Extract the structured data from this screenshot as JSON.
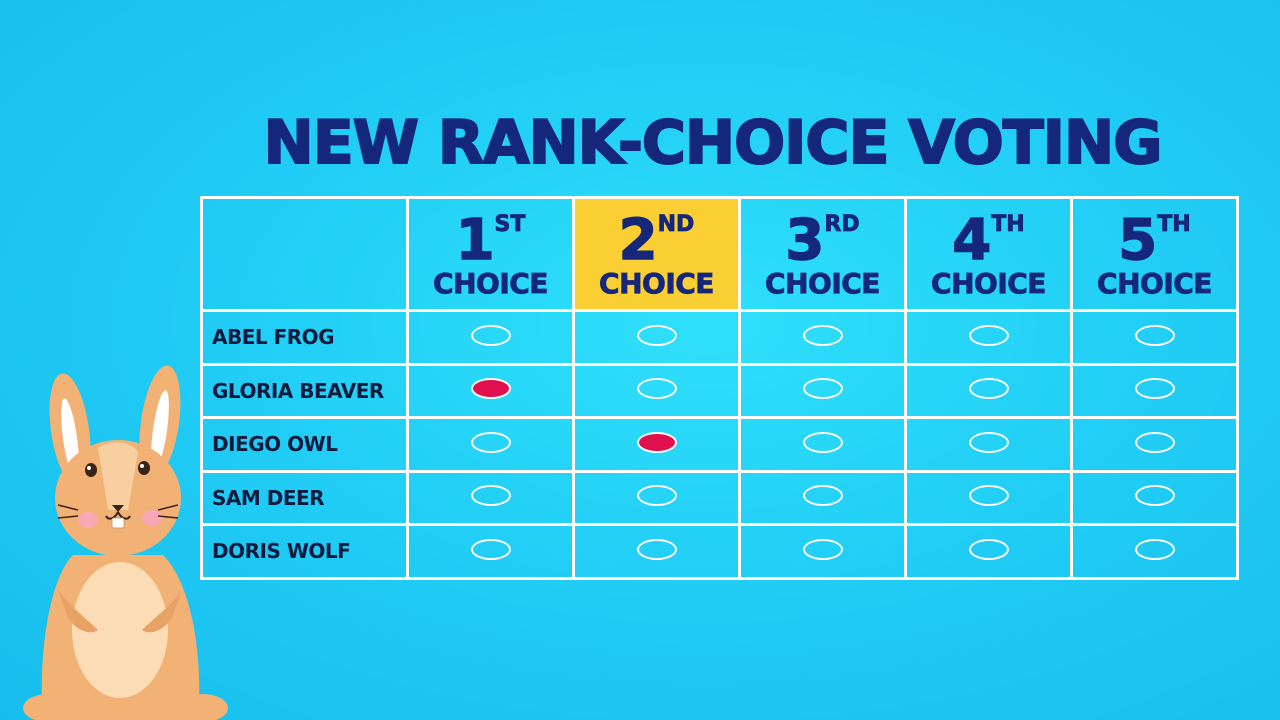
{
  "title": "NEW RANK-CHOICE VOTING",
  "choices": [
    {
      "num": "1",
      "suffix": "ST",
      "label": "CHOICE"
    },
    {
      "num": "2",
      "suffix": "ND",
      "label": "CHOICE"
    },
    {
      "num": "3",
      "suffix": "RD",
      "label": "CHOICE"
    },
    {
      "num": "4",
      "suffix": "TH",
      "label": "CHOICE"
    },
    {
      "num": "5",
      "suffix": "TH",
      "label": "CHOICE"
    }
  ],
  "highlighted_choice": 2,
  "candidates": [
    {
      "name": "ABEL FROG",
      "selected_choice": null
    },
    {
      "name": "GLORIA BEAVER",
      "selected_choice": 1
    },
    {
      "name": "DIEGO OWL",
      "selected_choice": 2
    },
    {
      "name": "SAM DEER",
      "selected_choice": null
    },
    {
      "name": "DORIS WOLF",
      "selected_choice": null
    }
  ],
  "colors": {
    "background": "#1fcaf4",
    "title": "#15277a",
    "highlight": "#f9cf33",
    "filled_oval": "#e0104f"
  }
}
